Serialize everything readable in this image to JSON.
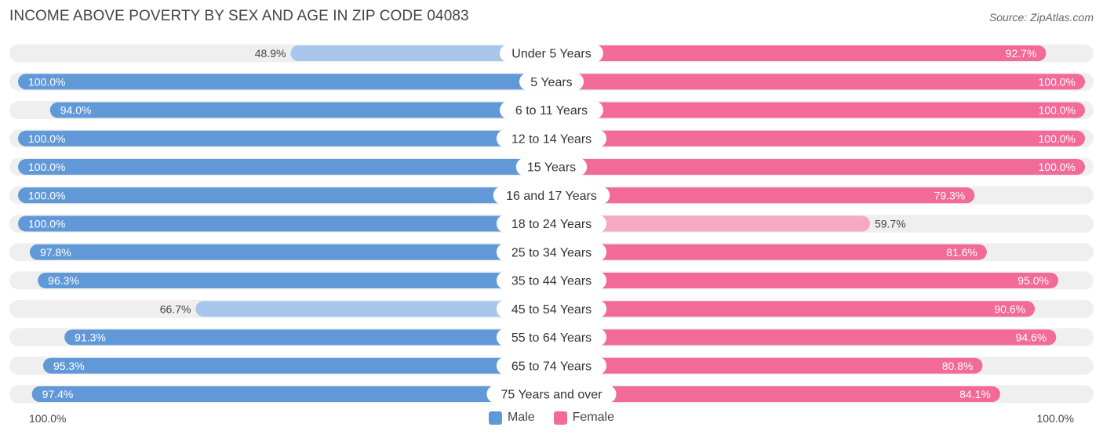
{
  "title": "INCOME ABOVE POVERTY BY SEX AND AGE IN ZIP CODE 04083",
  "source": "Source: ZipAtlas.com",
  "axis": {
    "left_label": "100.0%",
    "right_label": "100.0%"
  },
  "legend": {
    "male": "Male",
    "female": "Female"
  },
  "colors": {
    "male_strong": "#6199d8",
    "male_light": "#a8c6ec",
    "female_strong": "#f26a97",
    "female_light": "#f7a8c3",
    "row_background": "#efefef"
  },
  "chart_data": {
    "type": "bar",
    "orientation": "horizontal-diverging",
    "categories": [
      "Under 5 Years",
      "5 Years",
      "6 to 11 Years",
      "12 to 14 Years",
      "15 Years",
      "16 and 17 Years",
      "18 to 24 Years",
      "25 to 34 Years",
      "35 to 44 Years",
      "45 to 54 Years",
      "55 to 64 Years",
      "65 to 74 Years",
      "75 Years and over"
    ],
    "series": [
      {
        "name": "Male",
        "values": [
          48.9,
          100.0,
          94.0,
          100.0,
          100.0,
          100.0,
          100.0,
          97.8,
          96.3,
          66.7,
          91.3,
          95.3,
          97.4
        ],
        "labels": [
          "48.9%",
          "100.0%",
          "94.0%",
          "100.0%",
          "100.0%",
          "100.0%",
          "100.0%",
          "97.8%",
          "96.3%",
          "66.7%",
          "91.3%",
          "95.3%",
          "97.4%"
        ]
      },
      {
        "name": "Female",
        "values": [
          92.7,
          100.0,
          100.0,
          100.0,
          100.0,
          79.3,
          59.7,
          81.6,
          95.0,
          90.6,
          94.6,
          80.8,
          84.1
        ],
        "labels": [
          "92.7%",
          "100.0%",
          "100.0%",
          "100.0%",
          "100.0%",
          "79.3%",
          "59.7%",
          "81.6%",
          "95.0%",
          "90.6%",
          "94.6%",
          "80.8%",
          "84.1%"
        ]
      }
    ],
    "xlim": [
      0,
      100
    ],
    "legend_position": "bottom-center"
  }
}
